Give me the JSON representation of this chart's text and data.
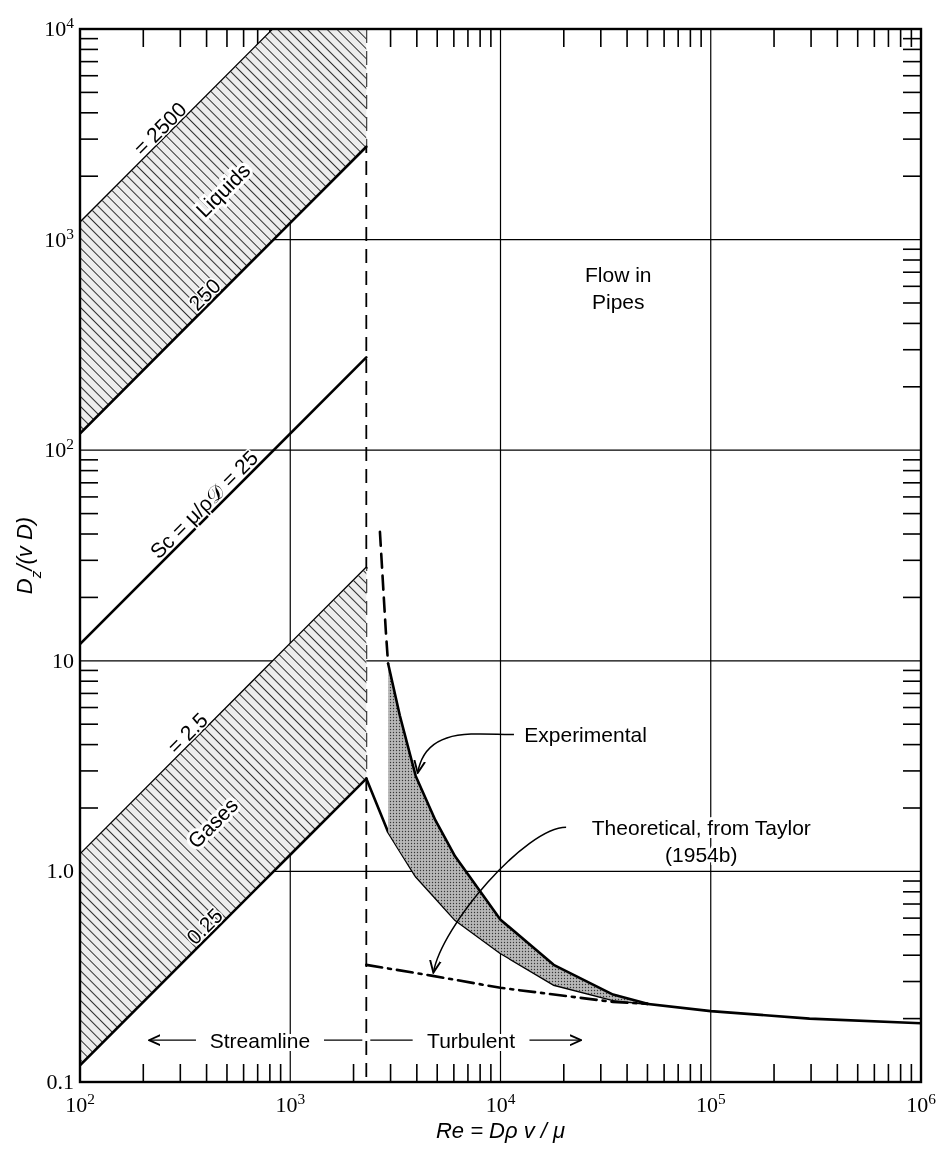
{
  "chart_data": {
    "type": "line",
    "xlabel": "Re = Dρ v / μ",
    "ylabel": "D$_{z}$/(v D)",
    "log": "xy",
    "grid": true,
    "legend": "top left",
    "xlim": [
      100,
      1000000
    ],
    "ylim": [
      0.1,
      10000
    ],
    "xticks": [
      {
        "value": 100,
        "label": "10$^{2}$"
      },
      {
        "value": 1000,
        "label": "10$^{3}$"
      },
      {
        "value": 10000,
        "label": "10$^{4}$"
      },
      {
        "value": 100000,
        "label": "10$^{5}$"
      },
      {
        "value": 1000000,
        "label": "10$^{6}$"
      }
    ],
    "yticks": [
      0.1,
      {
        "value": 1,
        "label": "1.0"
      },
      10,
      {
        "value": 100,
        "label": "10$^{2}$"
      },
      {
        "value": 1000,
        "label": "10$^{3}$"
      },
      {
        "value": 10000,
        "label": "10$^{4}$"
      }
    ],
    "ref_lines": [
      {
        "axis": "x",
        "value": 2300,
        "line_style": "dashed",
        "color": "#000000"
      }
    ],
    "series": [
      {
        "name": "= 2500",
        "color": "#000000",
        "x": [
          100,
          833
        ],
        "values": [
          1200,
          10000
        ]
      },
      {
        "name": "250",
        "color": "#000000",
        "x": [
          100,
          833,
          2300
        ],
        "values": [
          120,
          1000,
          2760
        ],
        "lower": [
          120,
          1000,
          2760
        ],
        "upper": [
          1200,
          10000,
          10000
        ]
      },
      {
        "name": "Sc = μ/ρ𝒟 = 25",
        "color": "#000000",
        "x": [
          100,
          2300
        ],
        "values": [
          12,
          276
        ]
      },
      {
        "name": "= 2.5",
        "color": "#000000",
        "x": [
          100,
          2300
        ],
        "values": [
          1.2,
          27.6
        ]
      },
      {
        "name": "0.25",
        "color": "#000000",
        "x": [
          100,
          1000,
          2300
        ],
        "values": [
          0.12,
          1.2,
          2.76
        ],
        "lower": [
          0.12,
          1.2,
          2.76
        ],
        "upper": [
          1.2,
          12,
          27.6
        ]
      },
      {
        "color": "#000000",
        "x": [
          2300,
          2920,
          3950,
          6080,
          10000,
          17900,
          34300,
          100000,
          295000,
          1000000
        ],
        "values": [
          2.76,
          1.54,
          0.95,
          0.59,
          0.41,
          0.29,
          0.245,
          0.217,
          0.2,
          0.19
        ]
      },
      {
        "color": "#000000",
        "x": [
          2920,
          3320,
          3950,
          4900,
          6080,
          10000,
          17900,
          34300,
          50000
        ],
        "values": [
          9.7,
          5.5,
          2.84,
          1.75,
          1.18,
          0.59,
          0.36,
          0.26,
          0.235
        ],
        "lower": [
          1.54,
          1.25,
          0.95,
          0.75,
          0.59,
          0.41,
          0.29,
          0.245,
          0.235
        ],
        "upper": [
          9.7,
          5.5,
          2.84,
          1.75,
          1.18,
          0.59,
          0.36,
          0.26,
          0.235
        ]
      },
      {
        "color": "#000000",
        "line_style": "dashed",
        "x": [
          2670,
          2790,
          2850,
          2920
        ],
        "values": [
          41,
          19.5,
          13.7,
          9.7
        ]
      },
      {
        "color": "#000000",
        "line_style": "dashdot",
        "x": [
          2300,
          4690,
          10000,
          34300,
          50000
        ],
        "values": [
          0.36,
          0.32,
          0.28,
          0.24,
          0.235
        ]
      }
    ],
    "annotations": [
      "Flow in Pipes",
      "Liquids",
      "Gases",
      {
        "text": "Streamline",
        "x": 2300,
        "y": 0.158
      },
      {
        "text": "Turbulent",
        "x": 2300,
        "y": 0.158
      },
      {
        "text": "Experimental",
        "x": 3950,
        "y": 2.84
      },
      {
        "text": "Theoretical, from Taylor (1954b)",
        "x": 4690,
        "y": 0.32
      }
    ]
  }
}
